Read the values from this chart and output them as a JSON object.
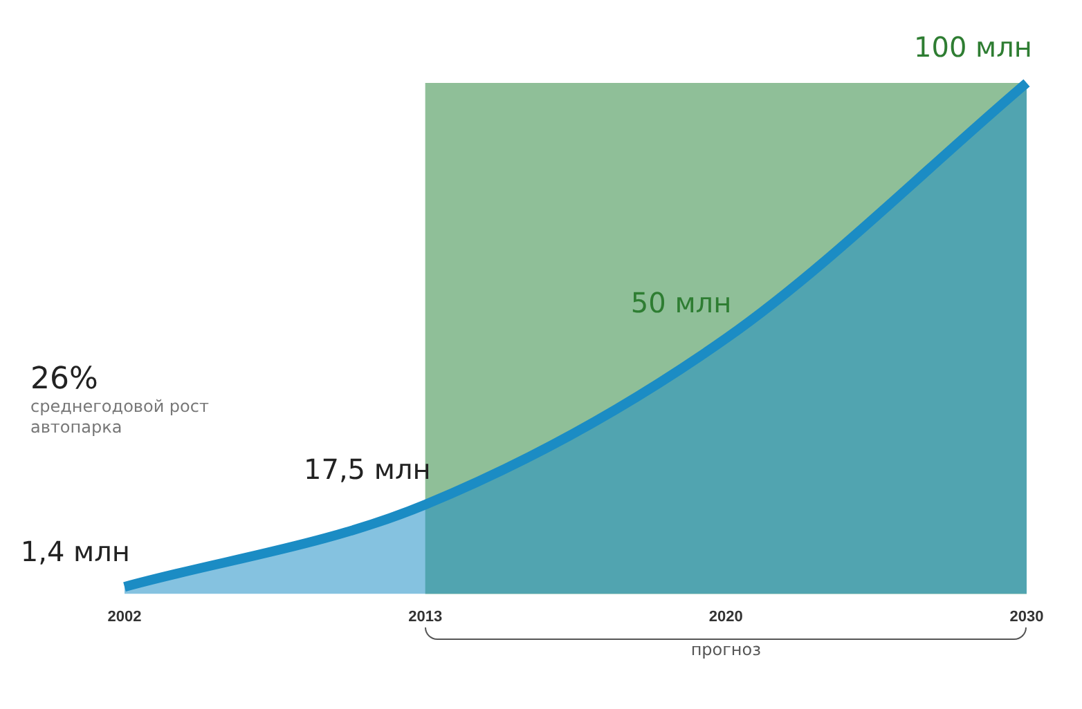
{
  "chart_data": {
    "type": "area",
    "categories": [
      "2002",
      "2013",
      "2020",
      "2030"
    ],
    "series": [
      {
        "color": "#1b8cc4",
        "values": [
          1.4,
          17.5,
          50,
          100
        ],
        "value_labels": [
          "1,4 млн",
          "17,5 млн",
          "50 млн",
          "100 млн"
        ]
      }
    ],
    "bands": [
      {
        "axis": "x",
        "from": "2013",
        "to": "2030",
        "label": "прогноз",
        "color": "#8fbf98"
      }
    ],
    "annotations": [
      "26% среднегодовой рост автопарка"
    ],
    "grid": false,
    "legend": false
  }
}
